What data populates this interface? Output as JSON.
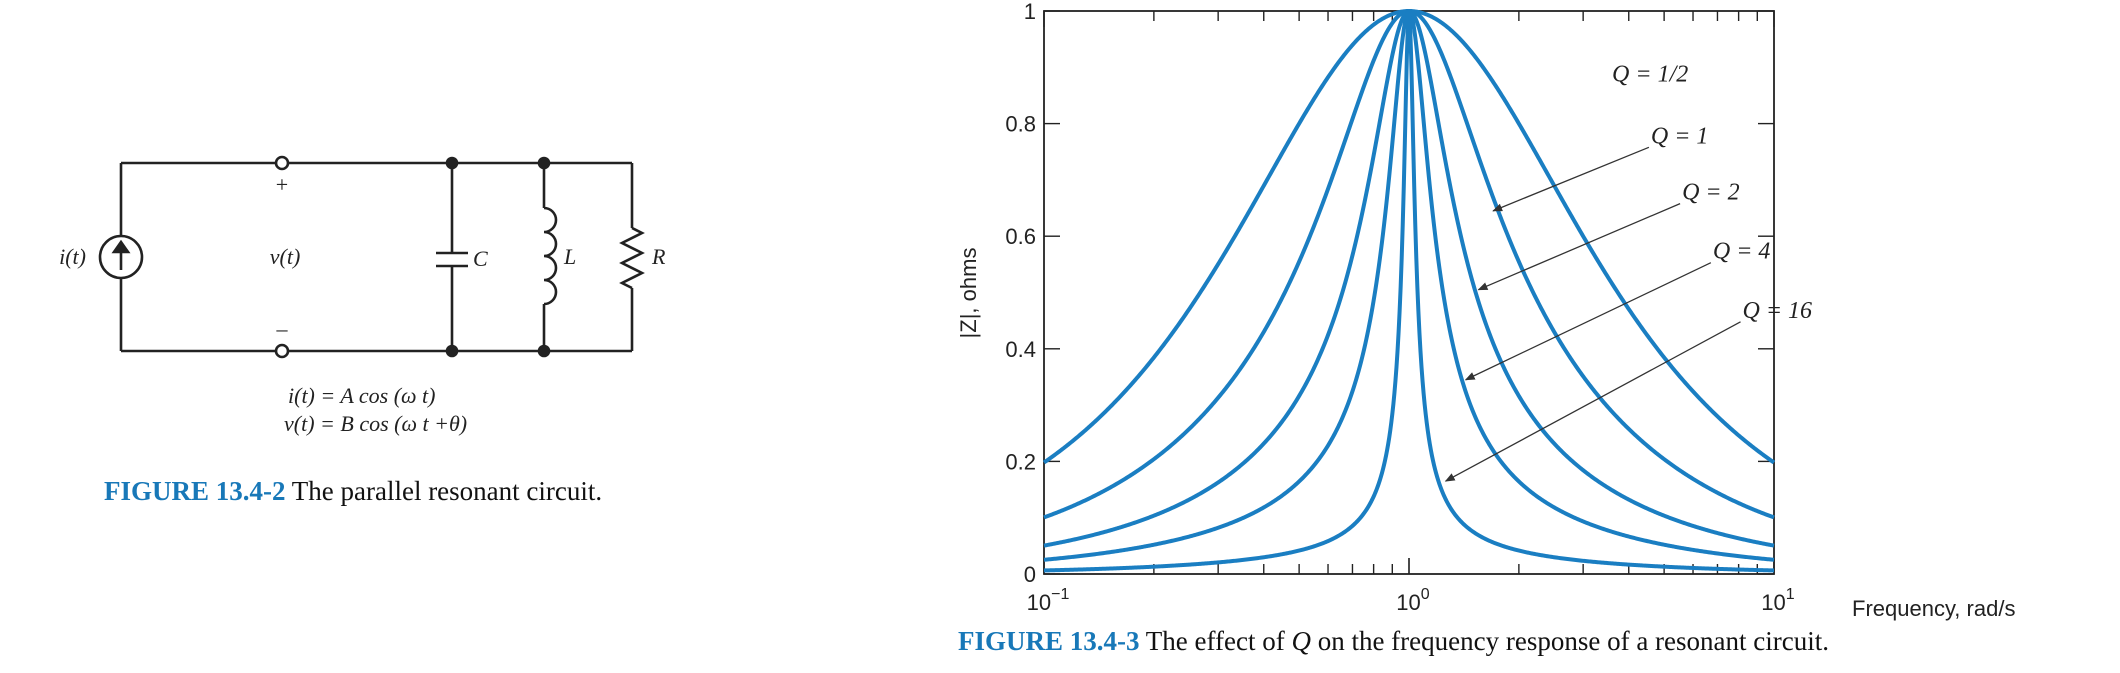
{
  "circuit": {
    "source_label": "i(t)",
    "voltage_label": "v(t)",
    "plus_sign": "+",
    "minus_sign": "–",
    "capacitor_label": "C",
    "inductor_label": "L",
    "resistor_label": "R",
    "equation_1": "i(t) = A cos (ω t)",
    "equation_2": "v(t) = B cos (ω t +θ)"
  },
  "figure_left": {
    "label": "FIGURE 13.4-2",
    "text": "The parallel resonant circuit."
  },
  "figure_right": {
    "label": "FIGURE 13.4-3",
    "text_before": "The effect of",
    "text_symbol": "Q",
    "text_after": "on the frequency response of a resonant circuit."
  },
  "chart_data": {
    "type": "line",
    "xlabel": "Frequency, rad/s",
    "ylabel": "|Z|, ohms",
    "x_scale": "log",
    "xlim": [
      0.1,
      10
    ],
    "ylim": [
      0,
      1
    ],
    "x_ticks": [
      {
        "value": 0.1,
        "base": "10",
        "exp": "−1"
      },
      {
        "value": 1,
        "base": "10",
        "exp": "0"
      },
      {
        "value": 10,
        "base": "10",
        "exp": "1"
      }
    ],
    "y_ticks": [
      {
        "value": 0,
        "label": "0"
      },
      {
        "value": 0.2,
        "label": "0.2"
      },
      {
        "value": 0.4,
        "label": "0.4"
      },
      {
        "value": 0.6,
        "label": "0.6"
      },
      {
        "value": 0.8,
        "label": "0.8"
      },
      {
        "value": 1,
        "label": "1"
      }
    ],
    "series_color": "#1a7ec2",
    "series": [
      {
        "name": "Q = 1/2",
        "q": 0.5,
        "label_pos": [
          3.6,
          0.875
        ],
        "arrow_to": null
      },
      {
        "name": "Q = 1",
        "q": 1,
        "label_pos": [
          4.6,
          0.765
        ],
        "arrow_to": [
          1.7,
          0.645
        ]
      },
      {
        "name": "Q = 2",
        "q": 2,
        "label_pos": [
          5.6,
          0.665
        ],
        "arrow_to": [
          1.55,
          0.505
        ]
      },
      {
        "name": "Q = 4",
        "q": 4,
        "label_pos": [
          6.8,
          0.56
        ],
        "arrow_to": [
          1.43,
          0.345
        ]
      },
      {
        "name": "Q = 16",
        "q": 16,
        "label_pos": [
          8.2,
          0.455
        ],
        "arrow_to": [
          1.26,
          0.165
        ]
      }
    ],
    "grid": false,
    "legend": "inline-annotations"
  }
}
